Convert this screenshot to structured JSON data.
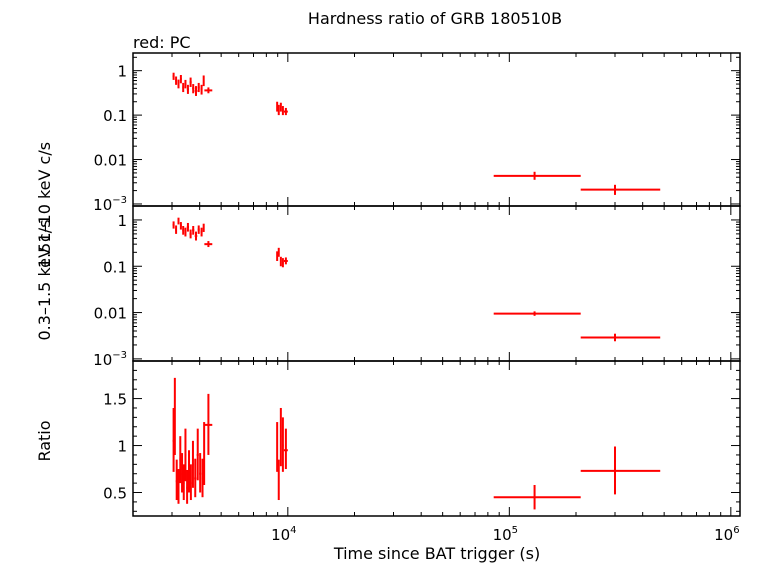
{
  "chart_data": {
    "type": "scatter",
    "title": "Hardness ratio of GRB 180510B",
    "subtitle": "red: PC",
    "xlabel": "Time since BAT trigger (s)",
    "x_scale": "log",
    "xlim": [
      2000,
      1100000
    ],
    "x_ticks": [
      {
        "value": 10000,
        "base": "10",
        "exp": "4"
      },
      {
        "value": 100000,
        "base": "10",
        "exp": "5"
      },
      {
        "value": 1000000,
        "base": "10",
        "exp": "6"
      }
    ],
    "colors": {
      "series": "#ff0000",
      "axes": "#000000"
    },
    "panels": [
      {
        "name": "hard",
        "ylabel": "1.51–10 keV c/s",
        "y_scale": "log",
        "ylim": [
          0.0009,
          2.5
        ],
        "y_ticks": [
          {
            "value": 1,
            "label": "1"
          },
          {
            "value": 0.1,
            "label": "0.1"
          },
          {
            "value": 0.01,
            "label": "0.01"
          },
          {
            "value": 0.001,
            "base": "10",
            "exp": "−3"
          }
        ],
        "points": [
          {
            "x": 3050,
            "y": 0.75,
            "x_lo": 3020,
            "x_hi": 3080,
            "y_lo": 0.62,
            "y_hi": 0.9
          },
          {
            "x": 3130,
            "y": 0.6,
            "x_lo": 3100,
            "x_hi": 3160,
            "y_lo": 0.48,
            "y_hi": 0.74
          },
          {
            "x": 3210,
            "y": 0.5,
            "x_lo": 3180,
            "x_hi": 3240,
            "y_lo": 0.4,
            "y_hi": 0.63
          },
          {
            "x": 3290,
            "y": 0.65,
            "x_lo": 3260,
            "x_hi": 3320,
            "y_lo": 0.52,
            "y_hi": 0.8
          },
          {
            "x": 3370,
            "y": 0.42,
            "x_lo": 3340,
            "x_hi": 3400,
            "y_lo": 0.33,
            "y_hi": 0.53
          },
          {
            "x": 3450,
            "y": 0.5,
            "x_lo": 3420,
            "x_hi": 3480,
            "y_lo": 0.4,
            "y_hi": 0.62
          },
          {
            "x": 3540,
            "y": 0.38,
            "x_lo": 3500,
            "x_hi": 3580,
            "y_lo": 0.3,
            "y_hi": 0.48
          },
          {
            "x": 3640,
            "y": 0.55,
            "x_lo": 3600,
            "x_hi": 3680,
            "y_lo": 0.43,
            "y_hi": 0.7
          },
          {
            "x": 3740,
            "y": 0.4,
            "x_lo": 3700,
            "x_hi": 3780,
            "y_lo": 0.31,
            "y_hi": 0.5
          },
          {
            "x": 3850,
            "y": 0.35,
            "x_lo": 3800,
            "x_hi": 3900,
            "y_lo": 0.27,
            "y_hi": 0.45
          },
          {
            "x": 3960,
            "y": 0.42,
            "x_lo": 3920,
            "x_hi": 4000,
            "y_lo": 0.33,
            "y_hi": 0.53
          },
          {
            "x": 4080,
            "y": 0.38,
            "x_lo": 4040,
            "x_hi": 4120,
            "y_lo": 0.29,
            "y_hi": 0.48
          },
          {
            "x": 4170,
            "y": 0.6,
            "x_lo": 4140,
            "x_hi": 4200,
            "y_lo": 0.45,
            "y_hi": 0.78
          },
          {
            "x": 4380,
            "y": 0.36,
            "x_lo": 4200,
            "x_hi": 4560,
            "y_lo": 0.31,
            "y_hi": 0.42
          },
          {
            "x": 8950,
            "y": 0.16,
            "x_lo": 8900,
            "x_hi": 9000,
            "y_lo": 0.12,
            "y_hi": 0.2
          },
          {
            "x": 9100,
            "y": 0.13,
            "x_lo": 9040,
            "x_hi": 9160,
            "y_lo": 0.1,
            "y_hi": 0.17
          },
          {
            "x": 9300,
            "y": 0.15,
            "x_lo": 9230,
            "x_hi": 9370,
            "y_lo": 0.12,
            "y_hi": 0.19
          },
          {
            "x": 9500,
            "y": 0.13,
            "x_lo": 9420,
            "x_hi": 9580,
            "y_lo": 0.1,
            "y_hi": 0.16
          },
          {
            "x": 9800,
            "y": 0.12,
            "x_lo": 9600,
            "x_hi": 10000,
            "y_lo": 0.1,
            "y_hi": 0.145
          },
          {
            "x": 130000,
            "y": 0.0043,
            "x_lo": 85000,
            "x_hi": 210000,
            "y_lo": 0.0035,
            "y_hi": 0.0053
          },
          {
            "x": 300000,
            "y": 0.0021,
            "x_lo": 210000,
            "x_hi": 480000,
            "y_lo": 0.0016,
            "y_hi": 0.0027
          }
        ]
      },
      {
        "name": "soft",
        "ylabel": "0.3–1.5 keV c/s",
        "y_scale": "log",
        "ylim": [
          0.0009,
          2.0
        ],
        "y_ticks": [
          {
            "value": 1,
            "label": "1"
          },
          {
            "value": 0.1,
            "label": "0.1"
          },
          {
            "value": 0.01,
            "label": "0.01"
          },
          {
            "value": 0.001,
            "base": "10",
            "exp": "−3"
          }
        ],
        "points": [
          {
            "x": 3050,
            "y": 0.78,
            "x_lo": 3020,
            "x_hi": 3080,
            "y_lo": 0.65,
            "y_hi": 0.93
          },
          {
            "x": 3130,
            "y": 0.62,
            "x_lo": 3100,
            "x_hi": 3160,
            "y_lo": 0.5,
            "y_hi": 0.76
          },
          {
            "x": 3210,
            "y": 0.95,
            "x_lo": 3180,
            "x_hi": 3240,
            "y_lo": 0.8,
            "y_hi": 1.12
          },
          {
            "x": 3290,
            "y": 0.75,
            "x_lo": 3260,
            "x_hi": 3320,
            "y_lo": 0.62,
            "y_hi": 0.9
          },
          {
            "x": 3370,
            "y": 0.6,
            "x_lo": 3340,
            "x_hi": 3400,
            "y_lo": 0.48,
            "y_hi": 0.74
          },
          {
            "x": 3450,
            "y": 0.55,
            "x_lo": 3420,
            "x_hi": 3480,
            "y_lo": 0.44,
            "y_hi": 0.68
          },
          {
            "x": 3540,
            "y": 0.7,
            "x_lo": 3500,
            "x_hi": 3580,
            "y_lo": 0.56,
            "y_hi": 0.86
          },
          {
            "x": 3640,
            "y": 0.5,
            "x_lo": 3600,
            "x_hi": 3680,
            "y_lo": 0.4,
            "y_hi": 0.62
          },
          {
            "x": 3740,
            "y": 0.6,
            "x_lo": 3700,
            "x_hi": 3780,
            "y_lo": 0.48,
            "y_hi": 0.74
          },
          {
            "x": 3850,
            "y": 0.45,
            "x_lo": 3800,
            "x_hi": 3900,
            "y_lo": 0.36,
            "y_hi": 0.56
          },
          {
            "x": 3960,
            "y": 0.62,
            "x_lo": 3920,
            "x_hi": 4000,
            "y_lo": 0.5,
            "y_hi": 0.76
          },
          {
            "x": 4080,
            "y": 0.55,
            "x_lo": 4040,
            "x_hi": 4120,
            "y_lo": 0.44,
            "y_hi": 0.68
          },
          {
            "x": 4170,
            "y": 0.68,
            "x_lo": 4140,
            "x_hi": 4200,
            "y_lo": 0.55,
            "y_hi": 0.83
          },
          {
            "x": 4380,
            "y": 0.3,
            "x_lo": 4200,
            "x_hi": 4560,
            "y_lo": 0.26,
            "y_hi": 0.35
          },
          {
            "x": 8950,
            "y": 0.17,
            "x_lo": 8900,
            "x_hi": 9000,
            "y_lo": 0.13,
            "y_hi": 0.21
          },
          {
            "x": 9100,
            "y": 0.2,
            "x_lo": 9040,
            "x_hi": 9160,
            "y_lo": 0.16,
            "y_hi": 0.25
          },
          {
            "x": 9300,
            "y": 0.13,
            "x_lo": 9230,
            "x_hi": 9370,
            "y_lo": 0.1,
            "y_hi": 0.16
          },
          {
            "x": 9500,
            "y": 0.12,
            "x_lo": 9420,
            "x_hi": 9580,
            "y_lo": 0.095,
            "y_hi": 0.15
          },
          {
            "x": 9800,
            "y": 0.13,
            "x_lo": 9600,
            "x_hi": 10000,
            "y_lo": 0.11,
            "y_hi": 0.155
          },
          {
            "x": 130000,
            "y": 0.0095,
            "x_lo": 85000,
            "x_hi": 210000,
            "y_lo": 0.0085,
            "y_hi": 0.0106
          },
          {
            "x": 300000,
            "y": 0.0029,
            "x_lo": 210000,
            "x_hi": 480000,
            "y_lo": 0.0024,
            "y_hi": 0.0035
          }
        ]
      },
      {
        "name": "ratio",
        "ylabel": "Ratio",
        "y_scale": "linear",
        "ylim": [
          0.25,
          1.9
        ],
        "y_ticks": [
          {
            "value": 1.5,
            "label": "1.5"
          },
          {
            "value": 1,
            "label": "1"
          },
          {
            "value": 0.5,
            "label": "0.5"
          }
        ],
        "points": [
          {
            "x": 3050,
            "y": 1.05,
            "x_lo": 3020,
            "x_hi": 3080,
            "y_lo": 0.72,
            "y_hi": 1.4
          },
          {
            "x": 3090,
            "y": 1.3,
            "x_lo": 3070,
            "x_hi": 3110,
            "y_lo": 0.9,
            "y_hi": 1.72
          },
          {
            "x": 3150,
            "y": 0.62,
            "x_lo": 3120,
            "x_hi": 3180,
            "y_lo": 0.42,
            "y_hi": 0.85
          },
          {
            "x": 3210,
            "y": 0.55,
            "x_lo": 3180,
            "x_hi": 3240,
            "y_lo": 0.38,
            "y_hi": 0.75
          },
          {
            "x": 3270,
            "y": 0.85,
            "x_lo": 3240,
            "x_hi": 3300,
            "y_lo": 0.6,
            "y_hi": 1.1
          },
          {
            "x": 3330,
            "y": 0.7,
            "x_lo": 3300,
            "x_hi": 3360,
            "y_lo": 0.5,
            "y_hi": 0.92
          },
          {
            "x": 3390,
            "y": 0.6,
            "x_lo": 3360,
            "x_hi": 3420,
            "y_lo": 0.42,
            "y_hi": 0.8
          },
          {
            "x": 3450,
            "y": 0.9,
            "x_lo": 3420,
            "x_hi": 3480,
            "y_lo": 0.62,
            "y_hi": 1.18
          },
          {
            "x": 3510,
            "y": 0.55,
            "x_lo": 3480,
            "x_hi": 3540,
            "y_lo": 0.38,
            "y_hi": 0.74
          },
          {
            "x": 3580,
            "y": 0.72,
            "x_lo": 3550,
            "x_hi": 3610,
            "y_lo": 0.5,
            "y_hi": 0.95
          },
          {
            "x": 3650,
            "y": 0.6,
            "x_lo": 3620,
            "x_hi": 3680,
            "y_lo": 0.42,
            "y_hi": 0.8
          },
          {
            "x": 3730,
            "y": 0.8,
            "x_lo": 3700,
            "x_hi": 3760,
            "y_lo": 0.55,
            "y_hi": 1.05
          },
          {
            "x": 3820,
            "y": 0.65,
            "x_lo": 3780,
            "x_hi": 3860,
            "y_lo": 0.45,
            "y_hi": 0.86
          },
          {
            "x": 3920,
            "y": 0.9,
            "x_lo": 3880,
            "x_hi": 3960,
            "y_lo": 0.63,
            "y_hi": 1.18
          },
          {
            "x": 4020,
            "y": 0.7,
            "x_lo": 3980,
            "x_hi": 4060,
            "y_lo": 0.5,
            "y_hi": 0.92
          },
          {
            "x": 4120,
            "y": 0.65,
            "x_lo": 4080,
            "x_hi": 4160,
            "y_lo": 0.45,
            "y_hi": 0.86
          },
          {
            "x": 4190,
            "y": 0.9,
            "x_lo": 4170,
            "x_hi": 4210,
            "y_lo": 0.58,
            "y_hi": 1.25
          },
          {
            "x": 4380,
            "y": 1.22,
            "x_lo": 4200,
            "x_hi": 4560,
            "y_lo": 0.9,
            "y_hi": 1.55
          },
          {
            "x": 8950,
            "y": 0.98,
            "x_lo": 8900,
            "x_hi": 9000,
            "y_lo": 0.72,
            "y_hi": 1.25
          },
          {
            "x": 9100,
            "y": 0.62,
            "x_lo": 9050,
            "x_hi": 9150,
            "y_lo": 0.42,
            "y_hi": 0.85
          },
          {
            "x": 9300,
            "y": 1.1,
            "x_lo": 9230,
            "x_hi": 9370,
            "y_lo": 0.78,
            "y_hi": 1.4
          },
          {
            "x": 9500,
            "y": 1.0,
            "x_lo": 9420,
            "x_hi": 9580,
            "y_lo": 0.72,
            "y_hi": 1.3
          },
          {
            "x": 9800,
            "y": 0.95,
            "x_lo": 9600,
            "x_hi": 10000,
            "y_lo": 0.75,
            "y_hi": 1.18
          },
          {
            "x": 130000,
            "y": 0.45,
            "x_lo": 85000,
            "x_hi": 210000,
            "y_lo": 0.32,
            "y_hi": 0.58
          },
          {
            "x": 300000,
            "y": 0.73,
            "x_lo": 210000,
            "x_hi": 480000,
            "y_lo": 0.48,
            "y_hi": 0.99
          }
        ]
      }
    ]
  }
}
